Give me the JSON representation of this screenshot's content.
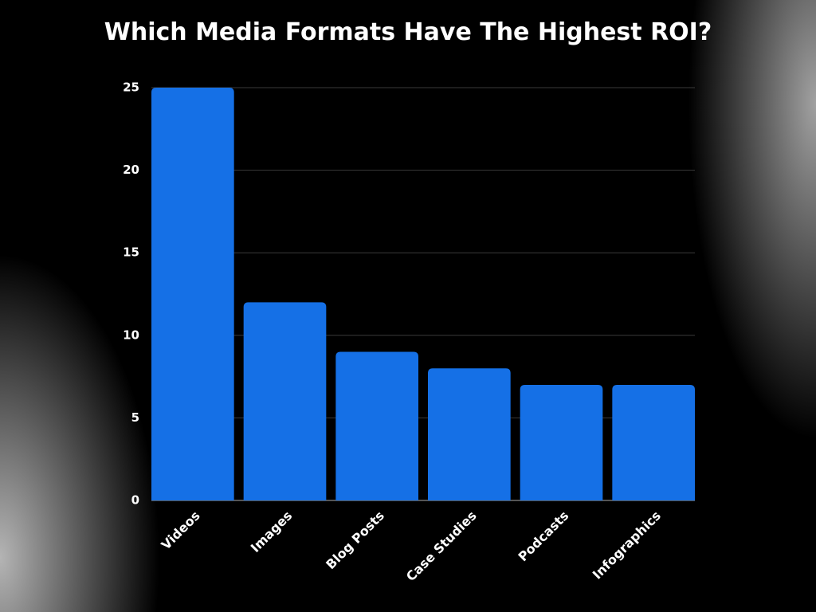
{
  "chart_data": {
    "type": "bar",
    "title": "Which Media Formats Have The Highest ROI?",
    "categories": [
      "Videos",
      "Images",
      "Blog Posts",
      "Case Studies",
      "Podcasts",
      "Infographics"
    ],
    "values": [
      25,
      12,
      9,
      8,
      7,
      7
    ],
    "color": "#1570e6",
    "ylim": [
      0,
      25
    ],
    "yticks": [
      0,
      5,
      10,
      15,
      20,
      25
    ],
    "grid": true
  }
}
